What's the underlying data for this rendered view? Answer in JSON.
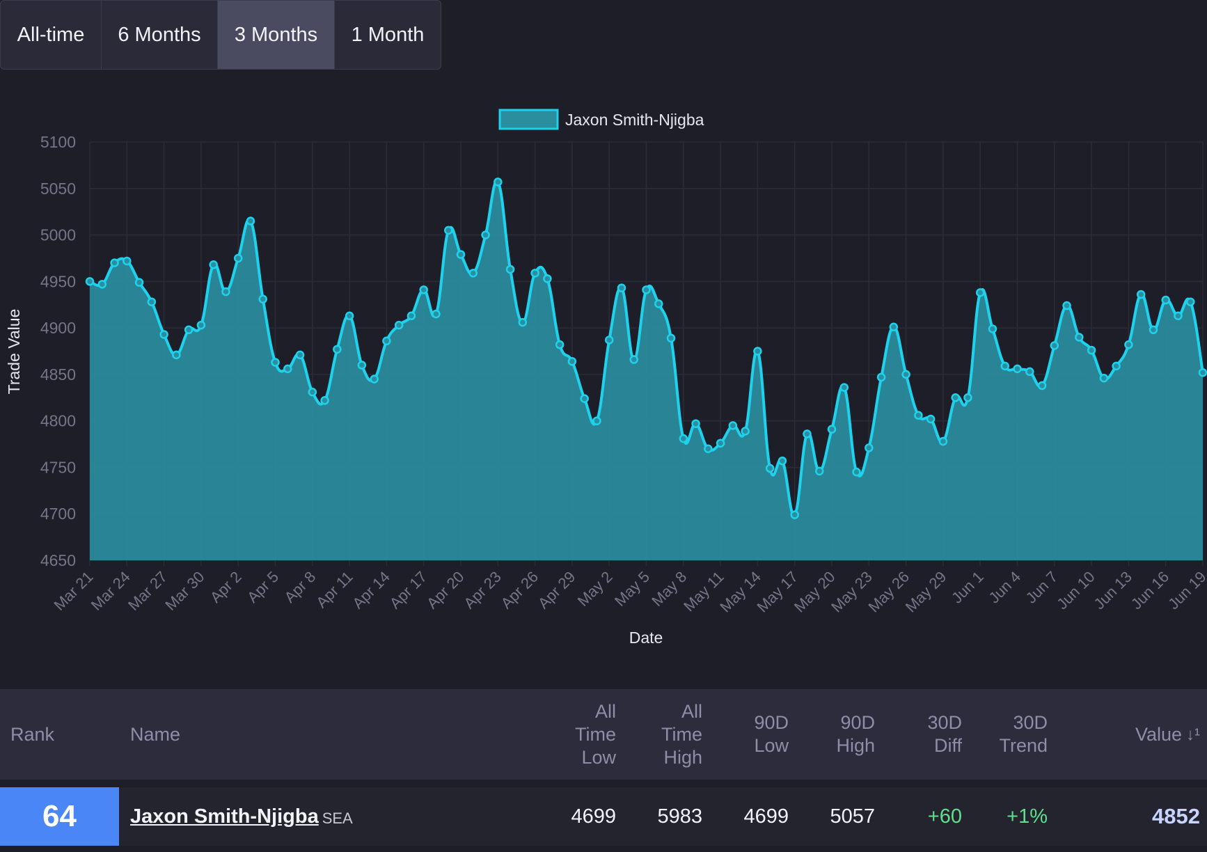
{
  "range_tabs": [
    {
      "label": "All-time",
      "active": false
    },
    {
      "label": "6 Months",
      "active": false
    },
    {
      "label": "3 Months",
      "active": true
    },
    {
      "label": "1 Month",
      "active": false
    }
  ],
  "colors": {
    "line": "#1ed2ee",
    "fill": "#2a8e9e",
    "background": "#1e1e28",
    "grid": "#2c2c38",
    "axis_text": "#75758a",
    "label_text": "#e6e6ee",
    "rank_badge": "#4a86f5",
    "positive": "#5fe08a",
    "value": "#c7d4ff"
  },
  "chart_data": {
    "type": "area",
    "legend_label": "Jaxon Smith-Njigba",
    "legend_position": "top-center",
    "xlabel": "Date",
    "ylabel": "Trade Value",
    "ylim": [
      4650,
      5100
    ],
    "yticks": [
      5100,
      5050,
      5000,
      4950,
      4900,
      4850,
      4800,
      4750,
      4700,
      4650
    ],
    "xticks": [
      "Mar 21",
      "Mar 24",
      "Mar 27",
      "Mar 30",
      "Apr 2",
      "Apr 5",
      "Apr 8",
      "Apr 11",
      "Apr 14",
      "Apr 17",
      "Apr 20",
      "Apr 23",
      "Apr 26",
      "Apr 29",
      "May 2",
      "May 5",
      "May 8",
      "May 11",
      "May 14",
      "May 17",
      "May 20",
      "May 23",
      "May 26",
      "May 29",
      "Jun 1",
      "Jun 4",
      "Jun 7",
      "Jun 10",
      "Jun 13",
      "Jun 16",
      "Jun 19"
    ],
    "grid": true,
    "series": [
      {
        "name": "Jaxon Smith-Njigba",
        "x": [
          "Mar 21",
          "Mar 22",
          "Mar 23",
          "Mar 24",
          "Mar 25",
          "Mar 26",
          "Mar 27",
          "Mar 28",
          "Mar 29",
          "Mar 30",
          "Mar 31",
          "Apr 1",
          "Apr 2",
          "Apr 3",
          "Apr 4",
          "Apr 5",
          "Apr 6",
          "Apr 7",
          "Apr 8",
          "Apr 9",
          "Apr 10",
          "Apr 11",
          "Apr 12",
          "Apr 13",
          "Apr 14",
          "Apr 15",
          "Apr 16",
          "Apr 17",
          "Apr 18",
          "Apr 19",
          "Apr 20",
          "Apr 21",
          "Apr 22",
          "Apr 23",
          "Apr 24",
          "Apr 25",
          "Apr 26",
          "Apr 27",
          "Apr 28",
          "Apr 29",
          "Apr 30",
          "May 1",
          "May 2",
          "May 3",
          "May 4",
          "May 5",
          "May 6",
          "May 7",
          "May 8",
          "May 9",
          "May 10",
          "May 11",
          "May 12",
          "May 13",
          "May 14",
          "May 15",
          "May 16",
          "May 17",
          "May 18",
          "May 19",
          "May 20",
          "May 21",
          "May 22",
          "May 23",
          "May 24",
          "May 25",
          "May 26",
          "May 27",
          "May 28",
          "May 29",
          "May 30",
          "May 31",
          "Jun 1",
          "Jun 2",
          "Jun 3",
          "Jun 4",
          "Jun 5",
          "Jun 6",
          "Jun 7",
          "Jun 8",
          "Jun 9",
          "Jun 10",
          "Jun 11",
          "Jun 12",
          "Jun 13",
          "Jun 14",
          "Jun 15",
          "Jun 16",
          "Jun 17",
          "Jun 18",
          "Jun 19"
        ],
        "values": [
          4950,
          4947,
          4970,
          4972,
          4949,
          4928,
          4893,
          4871,
          4898,
          4903,
          4968,
          4939,
          4975,
          5015,
          4931,
          4863,
          4856,
          4871,
          4831,
          4822,
          4877,
          4913,
          4860,
          4845,
          4886,
          4903,
          4913,
          4941,
          4915,
          5005,
          4979,
          4959,
          5000,
          5057,
          4963,
          4906,
          4959,
          4953,
          4882,
          4864,
          4824,
          4800,
          4887,
          4943,
          4866,
          4941,
          4926,
          4889,
          4781,
          4797,
          4770,
          4776,
          4795,
          4789,
          4875,
          4749,
          4757,
          4699,
          4786,
          4746,
          4791,
          4836,
          4745,
          4771,
          4847,
          4901,
          4850,
          4806,
          4802,
          4778,
          4825,
          4825,
          4938,
          4899,
          4859,
          4856,
          4853,
          4838,
          4881,
          4924,
          4890,
          4876,
          4846,
          4859,
          4882,
          4936,
          4898,
          4930,
          4913,
          4928,
          4852
        ]
      }
    ]
  },
  "table": {
    "headers": {
      "rank": "Rank",
      "name": "Name",
      "all_time_low": [
        "All",
        "Time",
        "Low"
      ],
      "all_time_high": [
        "All",
        "Time",
        "High"
      ],
      "d90_low": [
        "90D",
        "Low"
      ],
      "d90_high": [
        "90D",
        "High"
      ],
      "d30_diff": [
        "30D",
        "Diff"
      ],
      "d30_trend": [
        "30D",
        "Trend"
      ],
      "value": "Value",
      "sort_icon": "sort-descending-icon"
    },
    "row": {
      "rank": "64",
      "name": "Jaxon Smith-Njigba",
      "team": "SEA",
      "all_time_low": "4699",
      "all_time_high": "5983",
      "d90_low": "4699",
      "d90_high": "5057",
      "d30_diff": "+60",
      "d30_trend": "+1%",
      "value": "4852"
    }
  }
}
